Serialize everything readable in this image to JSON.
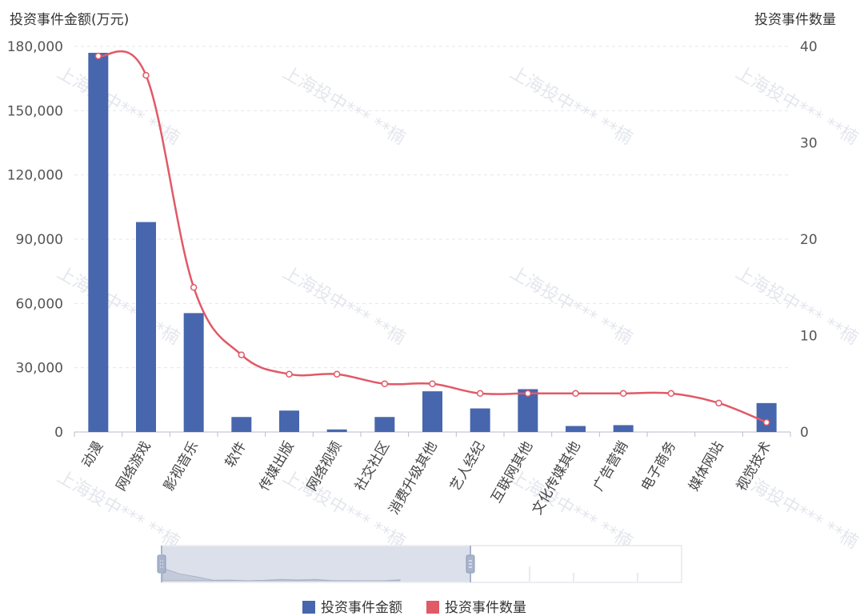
{
  "chart_data": {
    "type": "bar",
    "categories": [
      "动漫",
      "网络游戏",
      "影视音乐",
      "软件",
      "传媒出版",
      "网络视频",
      "社交社区",
      "消费升级其他",
      "艺人经纪",
      "互联网其他",
      "文化传媒其他",
      "广告营销",
      "电子商务",
      "媒体网站",
      "视觉技术"
    ],
    "series": [
      {
        "name": "投资事件金额",
        "type": "bar",
        "axis": "left",
        "color": "#4766ad",
        "values": [
          177000,
          98000,
          55500,
          7000,
          10000,
          1200,
          7000,
          19000,
          11000,
          20000,
          2800,
          3200,
          0,
          0,
          13500
        ]
      },
      {
        "name": "投资事件数量",
        "type": "line",
        "axis": "right",
        "color": "#e05a67",
        "values": [
          39,
          37,
          15,
          8,
          6,
          6,
          5,
          5,
          4,
          4,
          4,
          4,
          4,
          3,
          1
        ]
      }
    ],
    "ylabel": "投资事件金额(万元)",
    "ylabel_right": "投资事件数量",
    "ylim": [
      0,
      180000
    ],
    "ylim_right": [
      0,
      40
    ],
    "yticks": [
      "0",
      "30,000",
      "60,000",
      "90,000",
      "120,000",
      "150,000",
      "180,000"
    ],
    "yticks_right": [
      "0",
      "10",
      "20",
      "30",
      "40"
    ],
    "grid": true,
    "legend_position": "bottom-center",
    "watermark": "上海投中*** **楠"
  }
}
